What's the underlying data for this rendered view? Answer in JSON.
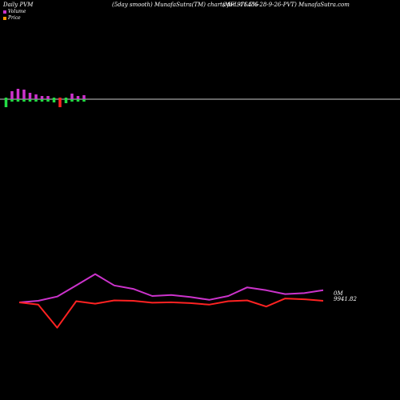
{
  "header": {
    "left": "Daily PVM",
    "center": "(5day smooth) MunafaSutra(TM) charts for 976455",
    "right": "(MFL-11.5%-28-9-26-PVT) MunafaSutra.com"
  },
  "legend": {
    "volume_label": "Volume",
    "price_label": "Price",
    "volume_color": "#cc33cc",
    "price_color": "#ff9900"
  },
  "chart_data": {
    "type": "line",
    "volume_panel": {
      "x": [
        1,
        2,
        3,
        4,
        5,
        6,
        7,
        8,
        9,
        10,
        11,
        12,
        13,
        14
      ],
      "values": [
        -10,
        10,
        13,
        12,
        8,
        6,
        4,
        4,
        -4,
        -10,
        -5,
        7,
        4,
        5
      ],
      "colors": [
        "#22dd44",
        "#cc33cc",
        "#cc33cc",
        "#cc33cc",
        "#cc33cc",
        "#cc33cc",
        "#cc33cc",
        "#cc33cc",
        "#22dd44",
        "#ff2222",
        "#22dd44",
        "#cc33cc",
        "#cc33cc",
        "#cc33cc"
      ],
      "down_colors": [
        "#22dd44",
        "#22dd44",
        "#22dd44",
        "#22dd44",
        "#22dd44",
        "#22dd44",
        "#22dd44",
        "#22dd44",
        "#22dd44",
        "#ff2222",
        "#22dd44",
        "#22dd44",
        "#22dd44",
        "#22dd44"
      ]
    },
    "series": [
      {
        "color": "#cc33cc",
        "x": [
          1,
          2,
          3,
          4,
          5,
          6,
          7,
          8,
          9,
          10,
          11,
          12,
          13,
          14,
          15,
          16,
          17
        ],
        "values": [
          9941.82,
          9950,
          9972,
          10030,
          10089,
          10030,
          10012,
          9975,
          9980,
          9970,
          9955,
          9975,
          10020,
          10005,
          9985,
          9990,
          10005
        ]
      },
      {
        "color": "#ff2222",
        "x": [
          1,
          2,
          3,
          4,
          5,
          6,
          7,
          8,
          9,
          10,
          11,
          12,
          13,
          14,
          15,
          16,
          17
        ],
        "values": [
          9941.82,
          9930,
          9810,
          9948,
          9935,
          9952,
          9950,
          9940,
          9942,
          9938,
          9930,
          9948,
          9952,
          9920,
          9962,
          9958,
          9950
        ]
      }
    ],
    "annotations": {
      "volume_value": "0M",
      "price_value": "9941.82"
    }
  }
}
